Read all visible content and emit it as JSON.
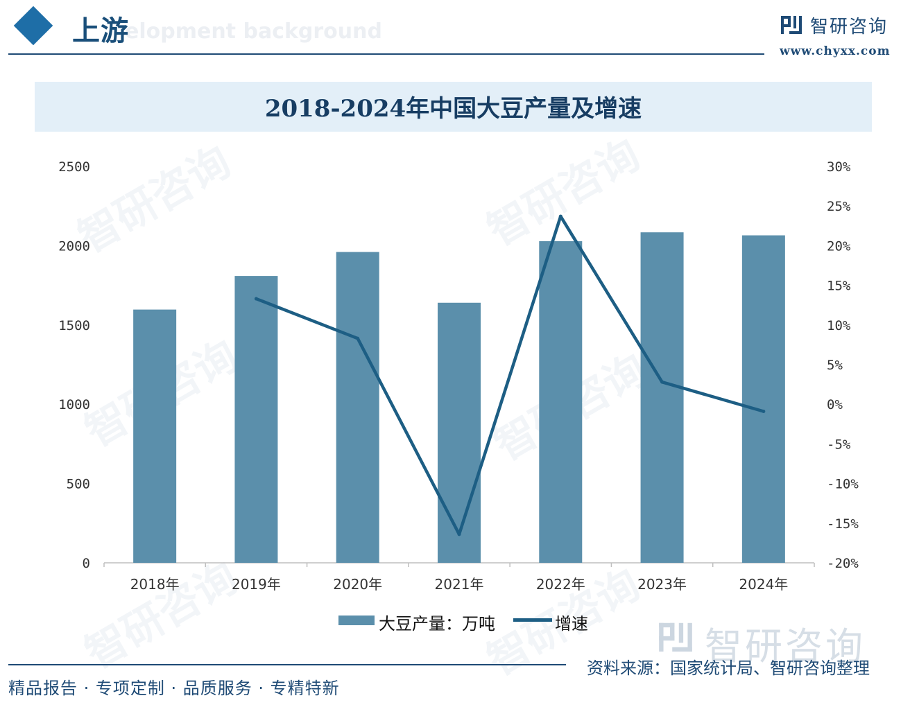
{
  "header": {
    "section_title": "上游",
    "section_subtitle": "elopment background",
    "brand_name": "智研咨询",
    "brand_url": "www.chyxx.com"
  },
  "chart_data": {
    "type": "bar",
    "title": "2018-2024年中国大豆产量及增速",
    "categories": [
      "2018年",
      "2019年",
      "2020年",
      "2021年",
      "2022年",
      "2023年",
      "2024年"
    ],
    "series": [
      {
        "name": "大豆产量：万吨",
        "type": "bar",
        "axis": "left",
        "values": [
          1597,
          1809,
          1960,
          1640,
          2028,
          2084,
          2065
        ]
      },
      {
        "name": "增速",
        "type": "line",
        "axis": "right",
        "values": [
          null,
          13.3,
          8.3,
          -16.4,
          23.7,
          2.8,
          -0.9
        ]
      }
    ],
    "y_left": {
      "ylim": [
        0,
        2500
      ],
      "ticks": [
        "0",
        "500",
        "1000",
        "1500",
        "2000",
        "2500"
      ]
    },
    "y_right": {
      "ylim": [
        -20,
        30
      ],
      "ticks": [
        "-20%",
        "-15%",
        "-10%",
        "-5%",
        "0%",
        "5%",
        "10%",
        "15%",
        "20%",
        "25%",
        "30%"
      ]
    },
    "legend": "bottom",
    "grid": false,
    "colors": {
      "bar": "#5b8fab",
      "line": "#1d5e84"
    }
  },
  "footer": {
    "source": "资料来源：国家统计局、智研咨询整理",
    "slogan": "精品报告 · 专项定制 · 品质服务 · 专精特新",
    "watermark_brand": "智研咨询"
  }
}
